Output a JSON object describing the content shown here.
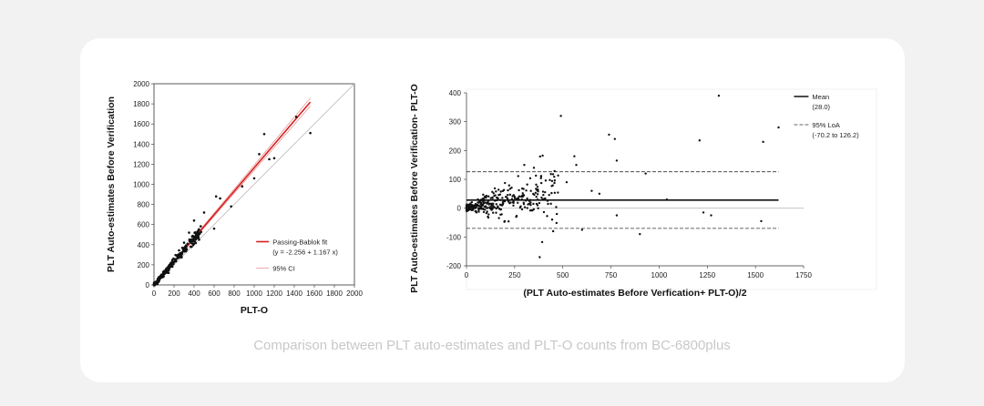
{
  "caption": "Comparison between PLT auto-estimates and PLT-O counts from BC-6800plus",
  "chart_data": [
    {
      "type": "scatter",
      "xlabel": "PLT-O",
      "ylabel": "PLT Auto-estimates Before Verification",
      "xlim": [
        0,
        2000
      ],
      "ylim": [
        0,
        2000
      ],
      "xticks": [
        "0",
        "200",
        "400",
        "600",
        "800",
        "1000",
        "1200",
        "1400",
        "1600",
        "1800",
        "2000"
      ],
      "yticks": [
        "0",
        "200",
        "400",
        "600",
        "800",
        "1000",
        "1200",
        "1400",
        "1600",
        "1800",
        "2000"
      ],
      "fit": {
        "intercept": -2.256,
        "slope": 1.167,
        "x_range": [
          0,
          1560
        ],
        "ci_offset": 40
      },
      "legend": {
        "fit_label": "Passing-Bablok fit",
        "equation": "(y = -2.256 + 1.167 x)",
        "ci_label": "95% CI",
        "position": "lower-right"
      },
      "colors": {
        "fit": "#d62020",
        "ci": "#e88a8a",
        "identity": "#b8b8b8",
        "points": "#111111"
      },
      "outliers": [
        [
          620,
          880
        ],
        [
          660,
          860
        ],
        [
          770,
          780
        ],
        [
          1000,
          1060
        ],
        [
          1100,
          1500
        ],
        [
          1150,
          1250
        ],
        [
          1200,
          1260
        ],
        [
          1420,
          1670
        ],
        [
          1560,
          1510
        ],
        [
          500,
          720
        ],
        [
          880,
          980
        ],
        [
          600,
          560
        ],
        [
          400,
          640
        ],
        [
          1050,
          1300
        ],
        [
          300,
          420
        ],
        [
          350,
          520
        ],
        [
          450,
          450
        ]
      ]
    },
    {
      "type": "scatter",
      "xlabel": "(PLT Auto-estimates Before Verfication+ PLT-O)/2",
      "ylabel": "PLT Auto-estimates Before Verification- PLT-O",
      "xlim": [
        0,
        1750
      ],
      "ylim": [
        -200,
        400
      ],
      "xticks": [
        "0",
        "250",
        "500",
        "750",
        "1000",
        "1250",
        "1500",
        "1750"
      ],
      "yticks": [
        "-200",
        "-100",
        "0",
        "100",
        "200",
        "300",
        "400"
      ],
      "mean": 28.0,
      "loa": [
        -70.2,
        126.2
      ],
      "legend": {
        "mean_label": "Mean",
        "mean_value": "(28.0)",
        "loa_label": "95% LoA",
        "loa_value": "(-70.2 to 126.2)",
        "position": "top-right"
      },
      "colors": {
        "mean": "#111111",
        "loa": "#333333",
        "zero": "#bbbbbb",
        "points": "#111111"
      },
      "outliers": [
        [
          490,
          320
        ],
        [
          1310,
          390
        ],
        [
          1620,
          280
        ],
        [
          1540,
          230
        ],
        [
          740,
          255
        ],
        [
          770,
          240
        ],
        [
          1210,
          235
        ],
        [
          780,
          165
        ],
        [
          560,
          180
        ],
        [
          570,
          150
        ],
        [
          900,
          -90
        ],
        [
          1230,
          -15
        ],
        [
          1270,
          -25
        ],
        [
          1530,
          -45
        ],
        [
          600,
          -75
        ],
        [
          380,
          -170
        ],
        [
          780,
          -25
        ],
        [
          930,
          120
        ],
        [
          1040,
          30
        ],
        [
          450,
          -80
        ],
        [
          650,
          60
        ],
        [
          690,
          50
        ],
        [
          520,
          90
        ],
        [
          300,
          150
        ],
        [
          350,
          140
        ]
      ]
    }
  ]
}
